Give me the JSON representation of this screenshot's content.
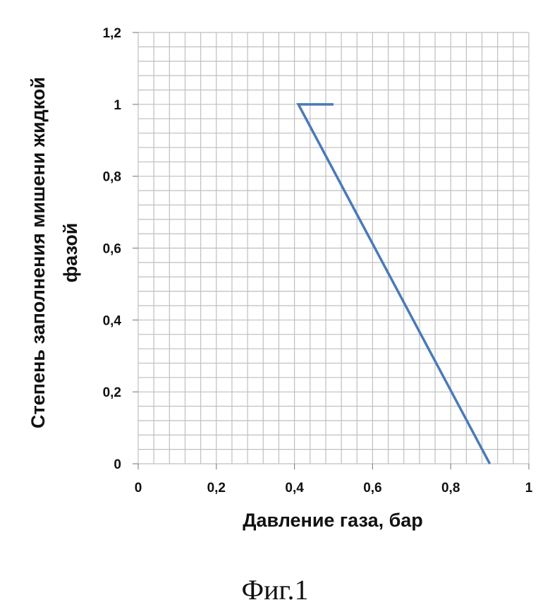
{
  "chart_data": {
    "type": "line",
    "xlabel": "Давление газа, бар",
    "ylabel_line1": "Степень заполнения мишени жидкой",
    "ylabel_line2": "фазой",
    "xlim": [
      0,
      1
    ],
    "ylim": [
      0,
      1.2
    ],
    "x_ticks": [
      0,
      0.2,
      0.4,
      0.6,
      0.8,
      1
    ],
    "x_tick_labels": [
      "0",
      "0,2",
      "0,4",
      "0,6",
      "0,8",
      "1"
    ],
    "y_ticks": [
      0,
      0.2,
      0.4,
      0.6,
      0.8,
      1,
      1.2
    ],
    "y_tick_labels": [
      "0",
      "0,2",
      "0,4",
      "0,6",
      "0,8",
      "1",
      "1,2"
    ],
    "minor_grid_step_x": 0.04,
    "minor_grid_step_y": 0.04,
    "grid": true,
    "series": [
      {
        "x": [
          0.5,
          0.41,
          0.9
        ],
        "y": [
          1.0,
          1.0,
          0.0
        ],
        "color": "#4a7ab8"
      }
    ],
    "grid_color": "#bfbfbf"
  },
  "caption": "Фиг.1"
}
